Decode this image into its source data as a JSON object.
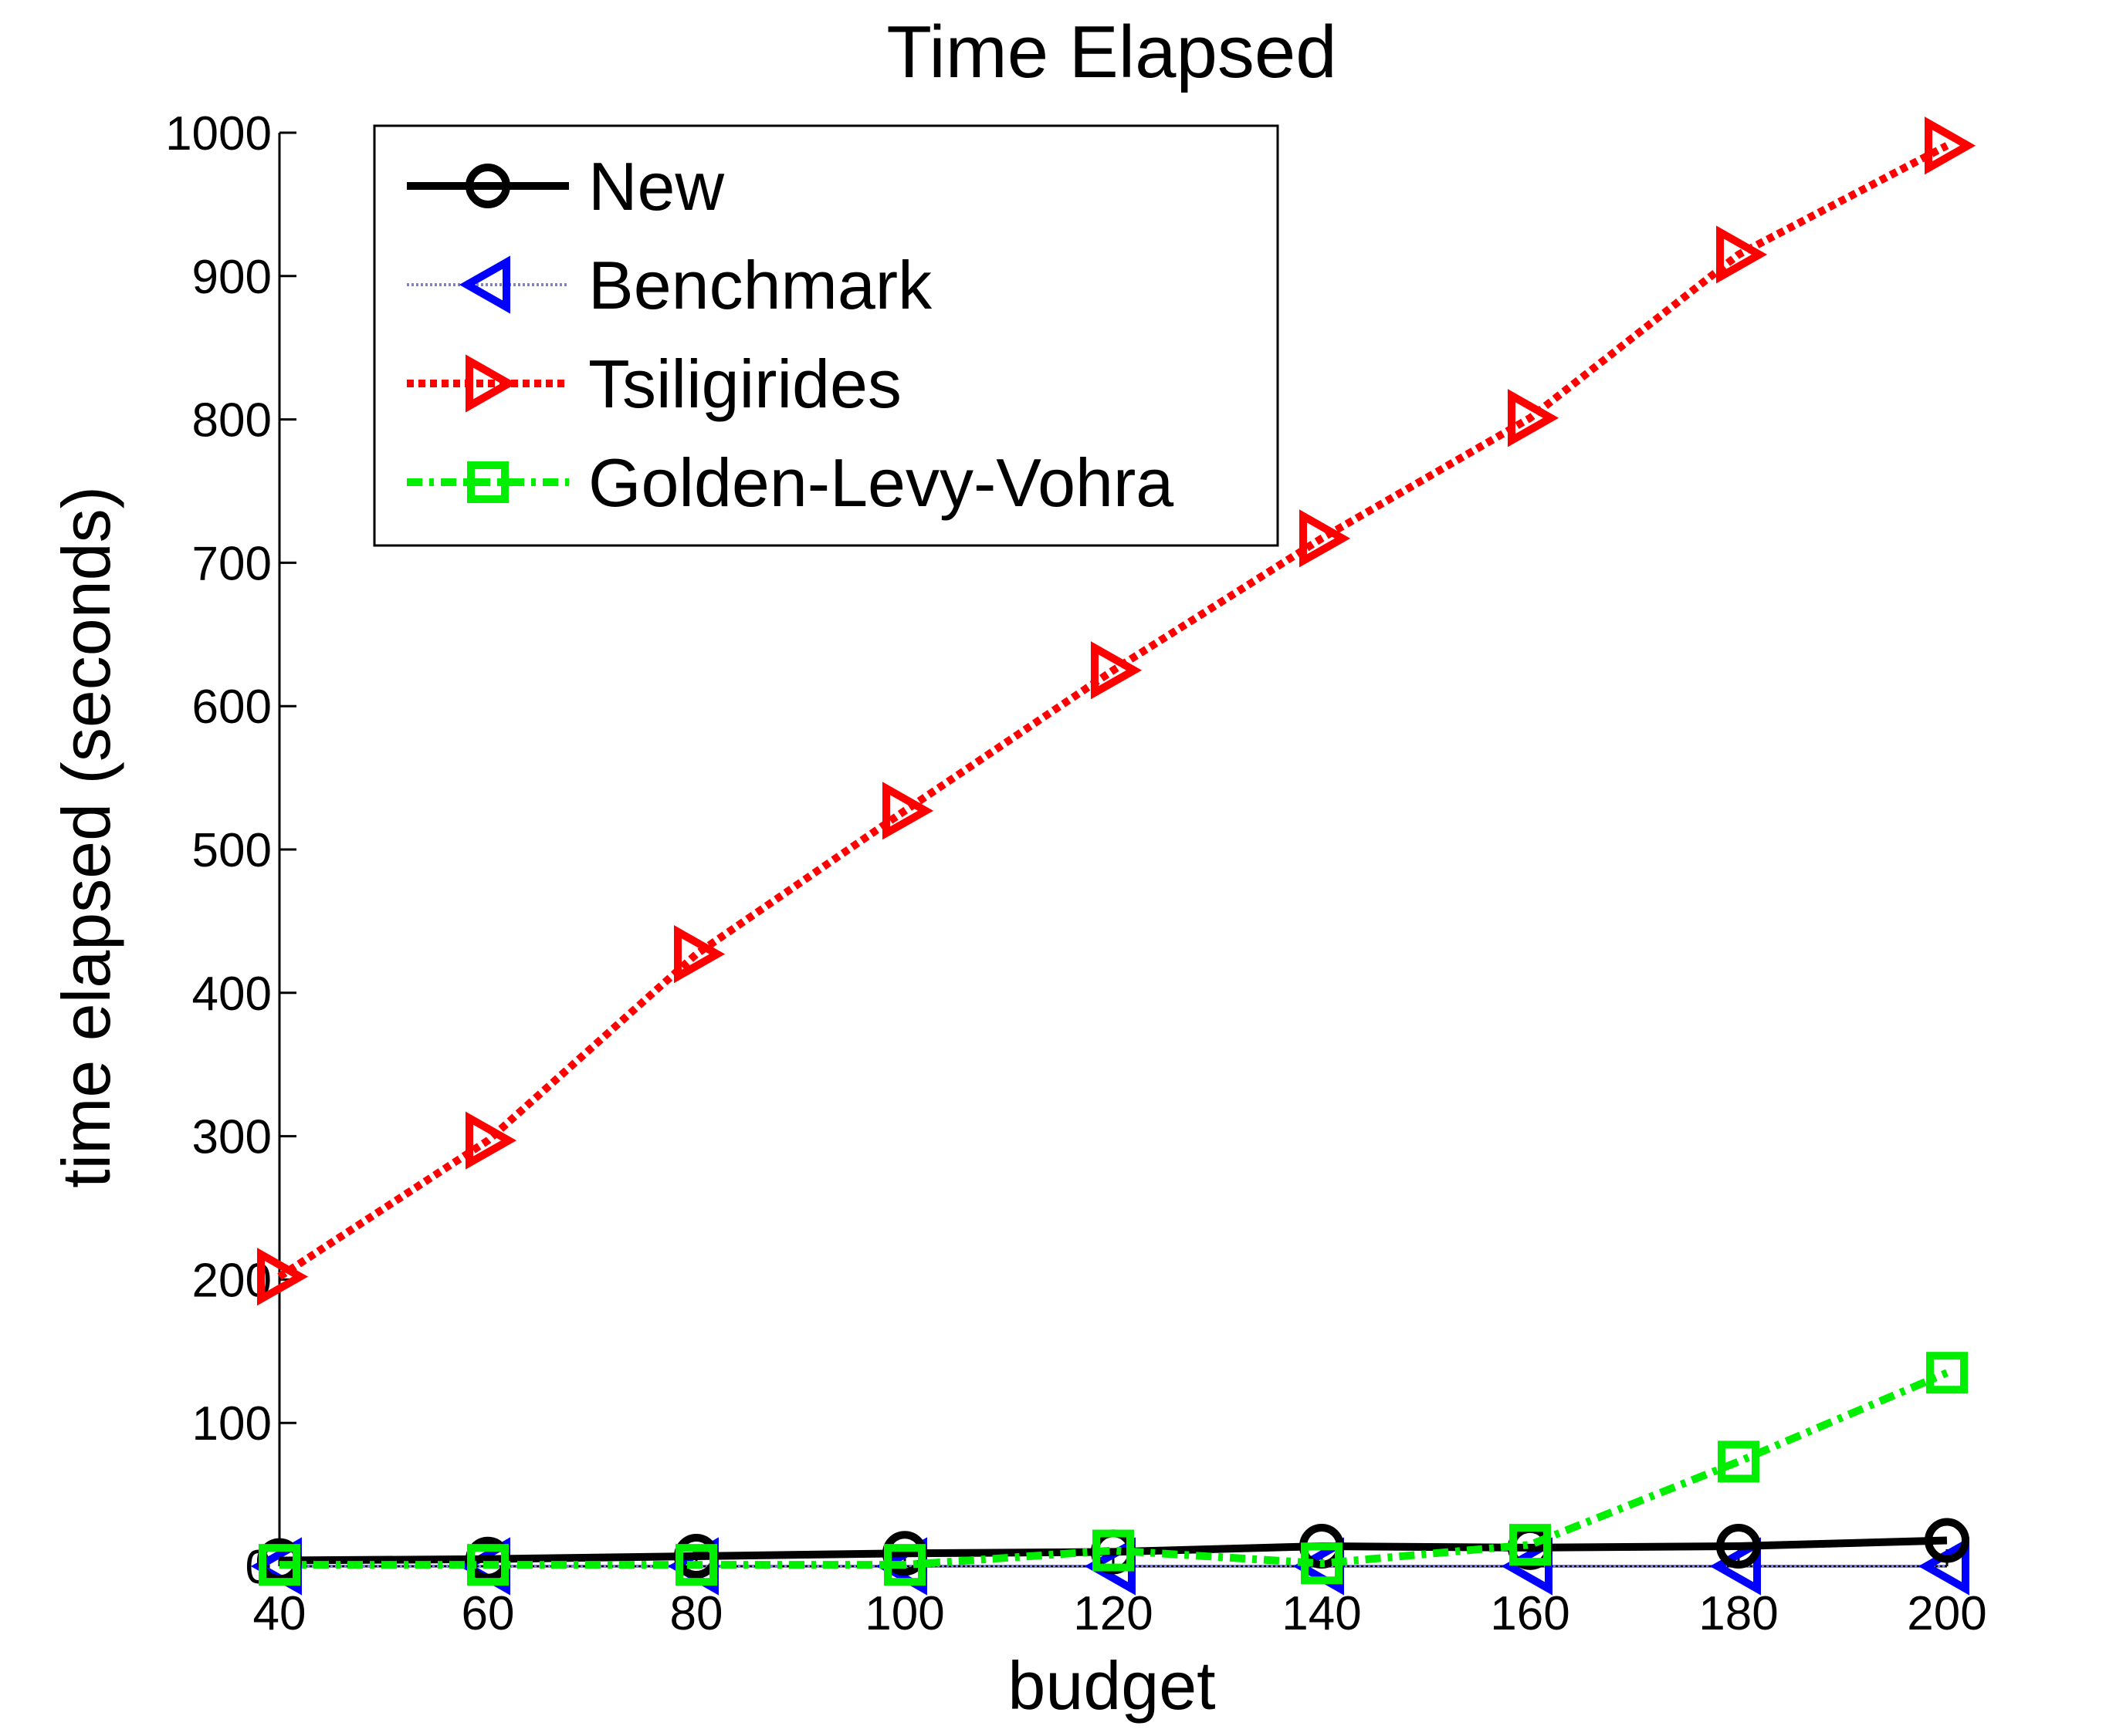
{
  "chart_data": {
    "type": "line",
    "title": "Time Elapsed",
    "xlabel": "budget",
    "ylabel": "time elapsed (seconds)",
    "xlim": [
      40,
      200
    ],
    "ylim": [
      0,
      1000
    ],
    "x_ticks": [
      40,
      60,
      80,
      100,
      120,
      140,
      160,
      180,
      200
    ],
    "y_ticks": [
      0,
      100,
      200,
      300,
      400,
      500,
      600,
      700,
      800,
      900,
      1000
    ],
    "grid": false,
    "legend_position": "top-left",
    "x": [
      40,
      60,
      80,
      100,
      120,
      140,
      160,
      180,
      200
    ],
    "series": [
      {
        "name": "New",
        "values": [
          4,
          5,
          7,
          9,
          10,
          14,
          13,
          14,
          18
        ],
        "color": "#000000",
        "line_style": "solid",
        "marker": "circle"
      },
      {
        "name": "Benchmark",
        "values": [
          0,
          0,
          0,
          0,
          0,
          0,
          0,
          0,
          0
        ],
        "color": "#0000ff",
        "line_color": "#8080cc",
        "line_style": "dotted",
        "marker": "triangle-left"
      },
      {
        "name": "Tsiligirides",
        "values": [
          202,
          297,
          427,
          527,
          625,
          717,
          801,
          915,
          991
        ],
        "color": "#ff0000",
        "line_style": "dotted",
        "marker": "triangle-right"
      },
      {
        "name": "Golden-Levy-Vohra",
        "values": [
          1,
          1,
          1,
          1,
          11,
          2,
          15,
          73,
          135
        ],
        "color": "#00ee00",
        "line_style": "dash-dot",
        "marker": "square"
      }
    ]
  }
}
